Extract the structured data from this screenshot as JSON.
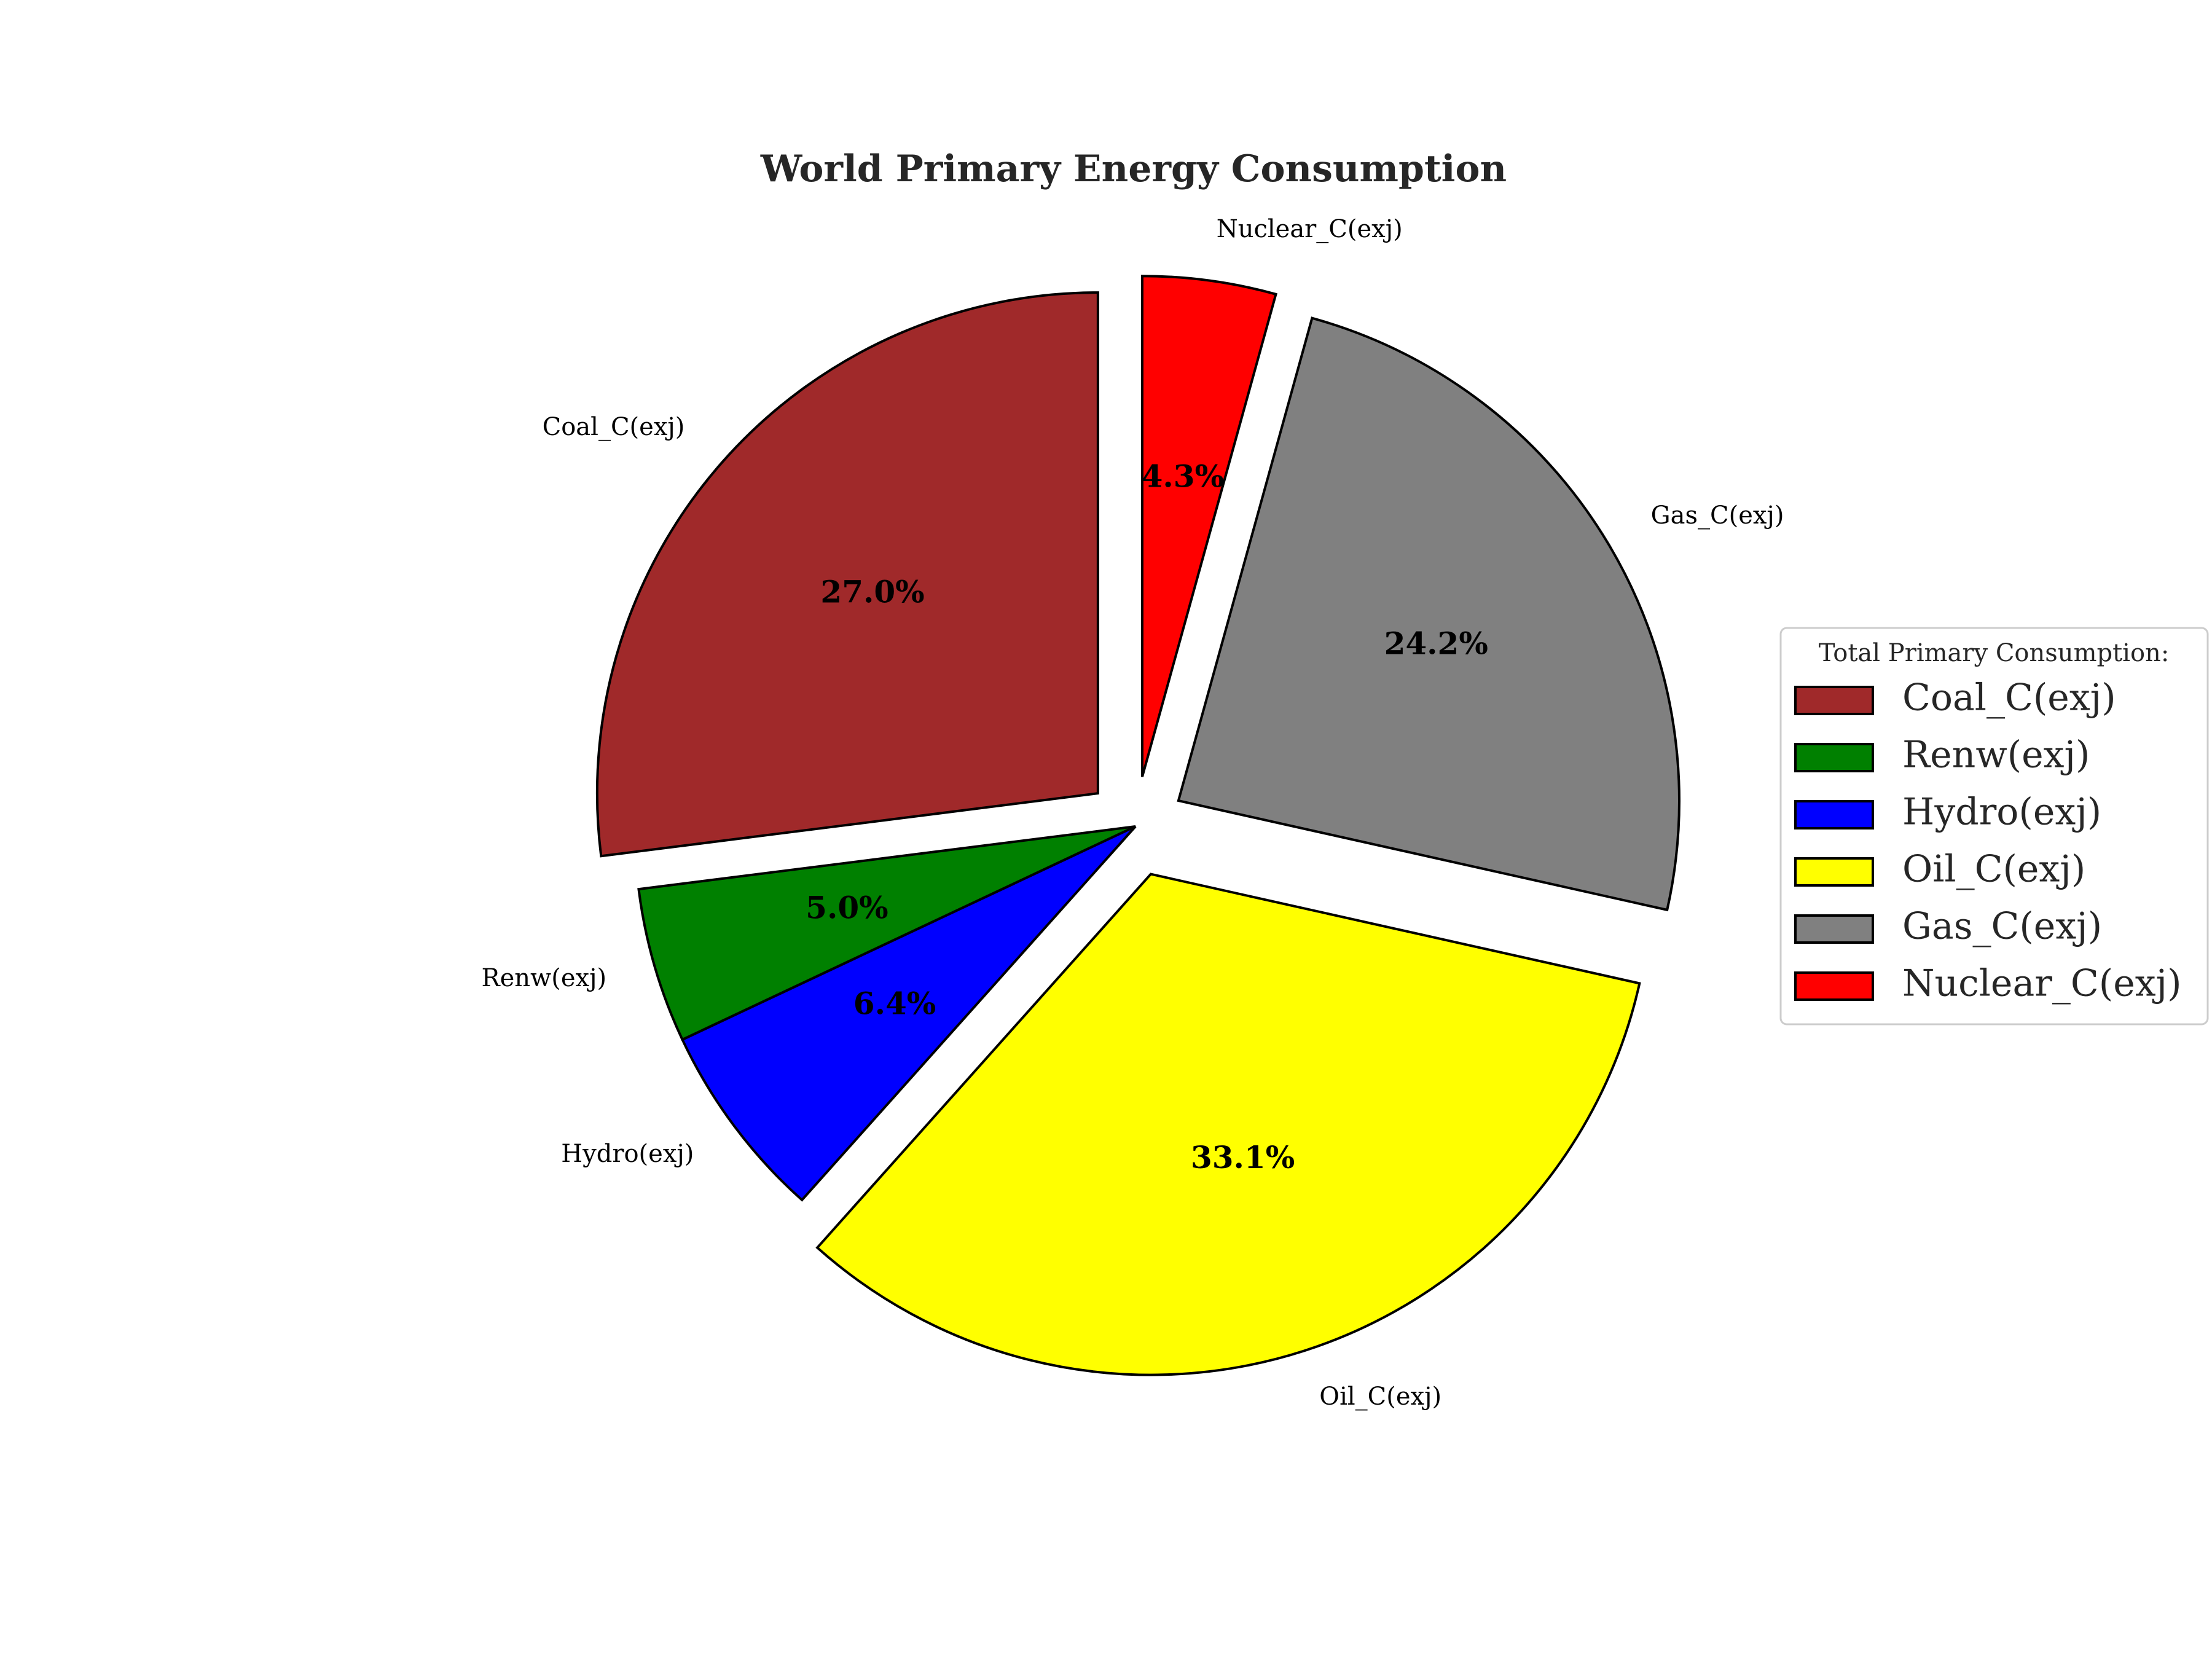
{
  "chart_data": {
    "type": "pie",
    "title": "World Primary Energy Consumption",
    "start_angle": 90,
    "direction": "counterclockwise",
    "slices": [
      {
        "label": "Coal_C(exj)",
        "percent": 27.0,
        "percent_label": "27.0%",
        "color": "#a0292a",
        "exploded": true
      },
      {
        "label": "Renw(exj)",
        "percent": 5.0,
        "percent_label": "5.0%",
        "color": "#008000",
        "exploded": false
      },
      {
        "label": "Hydro(exj)",
        "percent": 6.4,
        "percent_label": "6.4%",
        "color": "#0000ff",
        "exploded": false
      },
      {
        "label": "Oil_C(exj)",
        "percent": 33.1,
        "percent_label": "33.1%",
        "color": "#ffff00",
        "exploded": true
      },
      {
        "label": "Gas_C(exj)",
        "percent": 24.2,
        "percent_label": "24.2%",
        "color": "#808080",
        "exploded": true
      },
      {
        "label": "Nuclear_C(exj)",
        "percent": 4.3,
        "percent_label": "4.3%",
        "color": "#ff0000",
        "exploded": true
      }
    ],
    "legend": {
      "title": "Total Primary Consumption:",
      "placement": "center-right"
    }
  }
}
